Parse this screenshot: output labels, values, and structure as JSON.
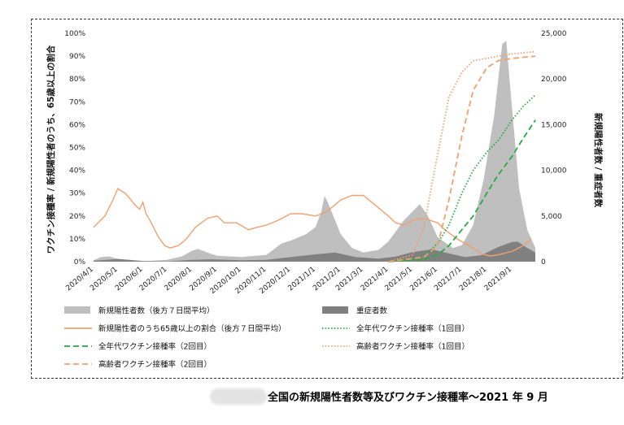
{
  "caption": "全国の新規陽性者数等及びワクチン接種率～2021 年 9 月",
  "chart_data": {
    "type": "area",
    "xlabel": "",
    "ylabel_left": "ワクチン接種率 / 新規陽性者のうち、65歳以上の割合",
    "ylabel_right": "新規陽性者数 / 重症者数",
    "ylim_left": [
      0,
      100
    ],
    "ylim_right": [
      0,
      25000
    ],
    "left_ticks": [
      "0%",
      "10%",
      "20%",
      "30%",
      "40%",
      "50%",
      "60%",
      "70%",
      "80%",
      "90%",
      "100%"
    ],
    "right_ticks": [
      "0",
      "5,000",
      "10,000",
      "15,000",
      "20,000",
      "25,000"
    ],
    "x_range": [
      "2020-04-01",
      "2021-09-30"
    ],
    "x_ticks": [
      "2020/4/1",
      "2020/5/1",
      "2020/6/1",
      "2020/7/1",
      "2020/8/1",
      "2020/9/1",
      "2020/10/1",
      "2020/11/1",
      "2020/12/1",
      "2021/1/1",
      "2021/2/1",
      "2021/3/1",
      "2021/4/1",
      "2021/5/1",
      "2021/6/1",
      "2021/7/1",
      "2021/8/1",
      "2021/9/1"
    ],
    "legend_placement": "bottom",
    "series": [
      {
        "name": "新規陽性者数（後方７日間平均）",
        "axis": "right",
        "kind": "area",
        "color": "#bfbfbf",
        "points": [
          [
            "2020-04-01",
            150
          ],
          [
            "2020-04-10",
            500
          ],
          [
            "2020-04-20",
            580
          ],
          [
            "2020-05-01",
            300
          ],
          [
            "2020-05-15",
            90
          ],
          [
            "2020-06-01",
            40
          ],
          [
            "2020-07-01",
            200
          ],
          [
            "2020-07-20",
            600
          ],
          [
            "2020-08-01",
            1200
          ],
          [
            "2020-08-08",
            1400
          ],
          [
            "2020-08-20",
            1000
          ],
          [
            "2020-09-01",
            650
          ],
          [
            "2020-10-01",
            520
          ],
          [
            "2020-11-01",
            750
          ],
          [
            "2020-11-20",
            2000
          ],
          [
            "2020-12-01",
            2300
          ],
          [
            "2020-12-20",
            3000
          ],
          [
            "2021-01-01",
            3800
          ],
          [
            "2021-01-08",
            5500
          ],
          [
            "2021-01-12",
            7200
          ],
          [
            "2021-01-16",
            6500
          ],
          [
            "2021-02-01",
            3000
          ],
          [
            "2021-02-15",
            1500
          ],
          [
            "2021-03-01",
            1000
          ],
          [
            "2021-03-20",
            1300
          ],
          [
            "2021-04-01",
            2200
          ],
          [
            "2021-04-20",
            4500
          ],
          [
            "2021-05-01",
            5500
          ],
          [
            "2021-05-10",
            6300
          ],
          [
            "2021-05-20",
            5000
          ],
          [
            "2021-06-01",
            2700
          ],
          [
            "2021-06-20",
            1500
          ],
          [
            "2021-07-01",
            1800
          ],
          [
            "2021-07-15",
            4000
          ],
          [
            "2021-07-28",
            9000
          ],
          [
            "2021-08-10",
            16000
          ],
          [
            "2021-08-20",
            23800
          ],
          [
            "2021-08-25",
            24200
          ],
          [
            "2021-09-01",
            17000
          ],
          [
            "2021-09-10",
            8000
          ],
          [
            "2021-09-20",
            3500
          ],
          [
            "2021-09-30",
            1500
          ]
        ]
      },
      {
        "name": "重症者数",
        "axis": "right",
        "kind": "area",
        "color": "#808080",
        "points": [
          [
            "2020-04-01",
            100
          ],
          [
            "2020-05-01",
            300
          ],
          [
            "2020-06-01",
            80
          ],
          [
            "2020-07-01",
            40
          ],
          [
            "2020-08-01",
            200
          ],
          [
            "2020-08-25",
            260
          ],
          [
            "2020-10-01",
            150
          ],
          [
            "2020-11-01",
            200
          ],
          [
            "2020-12-01",
            500
          ],
          [
            "2021-01-01",
            800
          ],
          [
            "2021-01-25",
            1000
          ],
          [
            "2021-02-20",
            500
          ],
          [
            "2021-03-20",
            330
          ],
          [
            "2021-04-10",
            550
          ],
          [
            "2021-05-01",
            1050
          ],
          [
            "2021-05-25",
            1350
          ],
          [
            "2021-06-15",
            900
          ],
          [
            "2021-07-05",
            500
          ],
          [
            "2021-07-25",
            700
          ],
          [
            "2021-08-15",
            1600
          ],
          [
            "2021-09-01",
            2150
          ],
          [
            "2021-09-08",
            2200
          ],
          [
            "2021-09-20",
            1500
          ],
          [
            "2021-09-30",
            1000
          ]
        ]
      },
      {
        "name": "新規陽性者のうち65歳以上の割合（後方７日間平均）",
        "axis": "left",
        "kind": "line",
        "style": "solid",
        "color": "#f0a070",
        "points": [
          [
            "2020-04-01",
            15
          ],
          [
            "2020-04-15",
            20
          ],
          [
            "2020-04-25",
            27
          ],
          [
            "2020-05-01",
            32
          ],
          [
            "2020-05-05",
            31
          ],
          [
            "2020-05-10",
            30
          ],
          [
            "2020-05-15",
            28
          ],
          [
            "2020-05-22",
            25
          ],
          [
            "2020-05-28",
            23
          ],
          [
            "2020-06-01",
            26
          ],
          [
            "2020-06-05",
            21
          ],
          [
            "2020-06-10",
            18
          ],
          [
            "2020-06-20",
            11
          ],
          [
            "2020-06-28",
            7
          ],
          [
            "2020-07-05",
            6
          ],
          [
            "2020-07-15",
            7
          ],
          [
            "2020-07-25",
            10
          ],
          [
            "2020-08-05",
            15
          ],
          [
            "2020-08-20",
            19
          ],
          [
            "2020-09-01",
            20
          ],
          [
            "2020-09-10",
            17
          ],
          [
            "2020-09-25",
            17
          ],
          [
            "2020-10-10",
            14
          ],
          [
            "2020-10-20",
            15
          ],
          [
            "2020-11-01",
            16
          ],
          [
            "2020-11-15",
            18
          ],
          [
            "2020-12-01",
            21
          ],
          [
            "2020-12-15",
            21
          ],
          [
            "2021-01-01",
            20
          ],
          [
            "2021-01-15",
            22
          ],
          [
            "2021-02-01",
            27
          ],
          [
            "2021-02-15",
            29
          ],
          [
            "2021-03-01",
            29
          ],
          [
            "2021-03-15",
            25
          ],
          [
            "2021-04-01",
            20
          ],
          [
            "2021-04-10",
            17
          ],
          [
            "2021-04-20",
            16
          ],
          [
            "2021-05-01",
            18
          ],
          [
            "2021-05-15",
            19
          ],
          [
            "2021-06-01",
            17
          ],
          [
            "2021-06-10",
            14
          ],
          [
            "2021-06-25",
            10
          ],
          [
            "2021-07-10",
            7
          ],
          [
            "2021-07-25",
            3.5
          ],
          [
            "2021-08-05",
            2.5
          ],
          [
            "2021-08-15",
            3
          ],
          [
            "2021-09-01",
            4.5
          ],
          [
            "2021-09-15",
            7
          ],
          [
            "2021-09-25",
            10
          ]
        ]
      },
      {
        "name": "全年代ワクチン接種率（1回目）",
        "axis": "left",
        "kind": "line",
        "style": "dotted",
        "color": "#22aa44",
        "points": [
          [
            "2021-04-01",
            0
          ],
          [
            "2021-05-01",
            1
          ],
          [
            "2021-05-20",
            4
          ],
          [
            "2021-06-01",
            8
          ],
          [
            "2021-06-15",
            16
          ],
          [
            "2021-07-01",
            30
          ],
          [
            "2021-07-15",
            40
          ],
          [
            "2021-08-01",
            48
          ],
          [
            "2021-08-15",
            53
          ],
          [
            "2021-09-01",
            62
          ],
          [
            "2021-09-15",
            68
          ],
          [
            "2021-09-30",
            73
          ]
        ]
      },
      {
        "name": "全年代ワクチン接種率（2回目）",
        "axis": "left",
        "kind": "line",
        "style": "dashed",
        "color": "#22aa44",
        "points": [
          [
            "2021-04-01",
            0
          ],
          [
            "2021-05-15",
            1
          ],
          [
            "2021-06-01",
            3
          ],
          [
            "2021-06-15",
            7
          ],
          [
            "2021-07-01",
            14
          ],
          [
            "2021-07-15",
            20
          ],
          [
            "2021-08-01",
            30
          ],
          [
            "2021-08-15",
            38
          ],
          [
            "2021-09-01",
            46
          ],
          [
            "2021-09-15",
            54
          ],
          [
            "2021-09-30",
            62
          ]
        ]
      },
      {
        "name": "高齢者ワクチン接種率（1回目）",
        "axis": "left",
        "kind": "line",
        "style": "dotted",
        "color": "#f0a070",
        "points": [
          [
            "2021-04-01",
            0
          ],
          [
            "2021-05-01",
            3
          ],
          [
            "2021-05-15",
            15
          ],
          [
            "2021-06-01",
            47
          ],
          [
            "2021-06-15",
            72
          ],
          [
            "2021-07-01",
            83
          ],
          [
            "2021-07-15",
            88
          ],
          [
            "2021-08-01",
            89
          ],
          [
            "2021-08-15",
            90
          ],
          [
            "2021-09-01",
            91
          ],
          [
            "2021-09-30",
            92
          ]
        ]
      },
      {
        "name": "高齢者ワクチン接種率（2回目）",
        "axis": "left",
        "kind": "line",
        "style": "dashed",
        "color": "#f0a070",
        "points": [
          [
            "2021-04-01",
            0
          ],
          [
            "2021-05-15",
            2
          ],
          [
            "2021-06-01",
            7
          ],
          [
            "2021-06-15",
            27
          ],
          [
            "2021-07-01",
            55
          ],
          [
            "2021-07-15",
            75
          ],
          [
            "2021-08-01",
            85
          ],
          [
            "2021-08-15",
            88
          ],
          [
            "2021-09-01",
            89
          ],
          [
            "2021-09-30",
            90
          ]
        ]
      }
    ]
  }
}
